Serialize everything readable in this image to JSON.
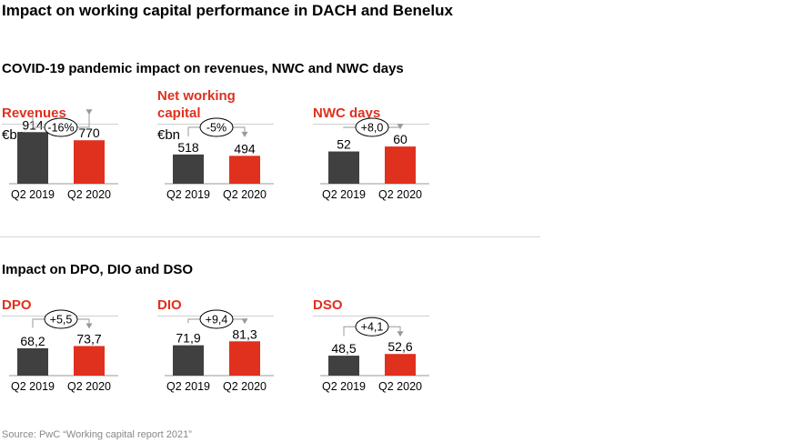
{
  "title": "Impact on working capital performance in DACH and Benelux",
  "sections": [
    {
      "title": "COVID-19 pandemic impact on revenues, NWC and NWC days"
    },
    {
      "title": "Impact on DPO, DIO and DSO"
    }
  ],
  "source": "Source: PwC “Working capital report 2021”",
  "colors": {
    "prior": "#404040",
    "current": "#e0301e",
    "accent_text": "#e0301e"
  },
  "chart_data": [
    {
      "type": "bar",
      "title": "Revenues",
      "unit": "€bn",
      "categories": [
        "Q2 2019",
        "Q2 2020"
      ],
      "values": [
        914,
        770
      ],
      "value_labels": [
        "914",
        "770"
      ],
      "change_label": "-16%",
      "ylim": [
        0,
        1450
      ]
    },
    {
      "type": "bar",
      "title": "Net working capital",
      "unit": "€bn",
      "categories": [
        "Q2 2019",
        "Q2 2020"
      ],
      "values": [
        518,
        494
      ],
      "value_labels": [
        "518",
        "494"
      ],
      "change_label": "-5%",
      "ylim": [
        0,
        1450
      ]
    },
    {
      "type": "bar",
      "title": "NWC days",
      "unit": "",
      "categories": [
        "Q2 2019",
        "Q2 2020"
      ],
      "values": [
        52,
        60
      ],
      "value_labels": [
        "52",
        "60"
      ],
      "change_label": "+8,0",
      "ylim": [
        0,
        132
      ]
    },
    {
      "type": "bar",
      "title": "DPO",
      "unit": "",
      "categories": [
        "Q2 2019",
        "Q2 2020"
      ],
      "values": [
        68.2,
        73.7
      ],
      "value_labels": [
        "68,2",
        "73,7"
      ],
      "change_label": "+5,5",
      "ylim": [
        0,
        204
      ]
    },
    {
      "type": "bar",
      "title": "DIO",
      "unit": "",
      "categories": [
        "Q2 2019",
        "Q2 2020"
      ],
      "values": [
        71.9,
        81.3
      ],
      "value_labels": [
        "71,9",
        "81,3"
      ],
      "change_label": "+9,4",
      "ylim": [
        0,
        194
      ]
    },
    {
      "type": "bar",
      "title": "DSO",
      "unit": "",
      "categories": [
        "Q2 2019",
        "Q2 2020"
      ],
      "values": [
        48.5,
        52.6
      ],
      "value_labels": [
        "48,5",
        "52,6"
      ],
      "change_label": "+4,1",
      "ylim": [
        0,
        199
      ]
    }
  ]
}
